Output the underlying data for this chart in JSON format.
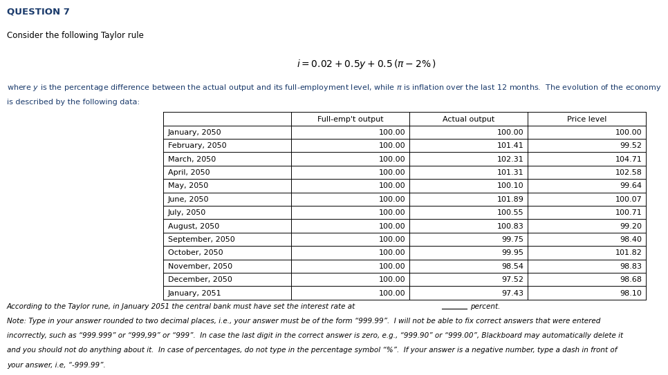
{
  "title": "QUESTION 7",
  "subtitle": "Consider the following Taylor rule",
  "formula": "$i = 0.02 + 0.5y + 0.5\\,(\\pi - 2\\%\\,)$",
  "desc1": "where ",
  "desc1_y": " is the percentage difference between the actual output and its full-employment level, while ",
  "desc1_pi": " is inflation over the last 12 months.",
  "desc1_end": "  The evolution of the economy",
  "desc2": "is described by the following data:",
  "col_headers": [
    "",
    "Full-emp't output",
    "Actual output",
    "Price level"
  ],
  "rows": [
    [
      "January, 2050",
      "100.00",
      "100.00",
      "100.00"
    ],
    [
      "February, 2050",
      "100.00",
      "101.41",
      "99.52"
    ],
    [
      "March, 2050",
      "100.00",
      "102.31",
      "104.71"
    ],
    [
      "April, 2050",
      "100.00",
      "101.31",
      "102.58"
    ],
    [
      "May, 2050",
      "100.00",
      "100.10",
      "99.64"
    ],
    [
      "June, 2050",
      "100.00",
      "101.89",
      "100.07"
    ],
    [
      "July, 2050",
      "100.00",
      "100.55",
      "100.71"
    ],
    [
      "August, 2050",
      "100.00",
      "100.83",
      "99.20"
    ],
    [
      "September, 2050",
      "100.00",
      "99.75",
      "98.40"
    ],
    [
      "October, 2050",
      "100.00",
      "99.95",
      "101.82"
    ],
    [
      "November, 2050",
      "100.00",
      "98.54",
      "98.83"
    ],
    [
      "December, 2050",
      "100.00",
      "97.52",
      "98.68"
    ],
    [
      "January, 2051",
      "100.00",
      "97.43",
      "98.10"
    ]
  ],
  "footer_main": "According to the Taylor rune, in January 2051 the central bank must have set the interest rate at",
  "footer_percent": "percent.",
  "footer_note2": "Note: Type in your answer rounded to two decimal places, i.e., your answer must be of the form “999.99”.  I will not be able to fix correct answers that were entered",
  "footer_note3": "incorrectly, such as “999.999” or “999,99” or “999”.  In case the last digit in the correct answer is zero, e.g., “999.90” or “999.00”, Blackboard may automatically delete it",
  "footer_note4": "and you should not do anything about it.  In case of percentages, do not type in the percentage symbol “%”.  If your answer is a negative number, type a dash in front of",
  "footer_note5": "your answer, i.e, “-999.99”.",
  "bg_color": "#f5f5f0",
  "white": "#ffffff",
  "blue": "#1a3a6b",
  "black": "#000000",
  "fs_title": 9.5,
  "fs_subtitle": 8.5,
  "fs_formula": 10,
  "fs_desc": 8.0,
  "fs_table": 8.0,
  "fs_footer": 7.5
}
